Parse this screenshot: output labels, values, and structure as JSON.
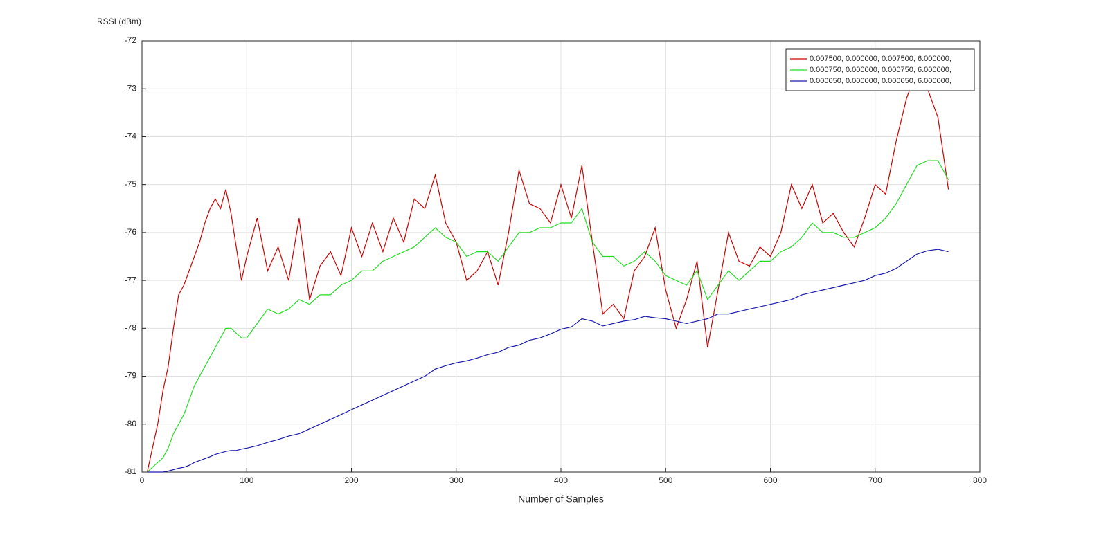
{
  "chart_data": {
    "type": "line",
    "y_label": "RSSI (dBm)",
    "x_label": "Number of Samples",
    "xlim": [
      0,
      800
    ],
    "xticks": [
      0,
      100,
      200,
      300,
      400,
      500,
      600,
      700,
      800
    ],
    "ylim": [
      -81,
      -72
    ],
    "yticks": [
      -81,
      -80,
      -79,
      -78,
      -77,
      -76,
      -75,
      -74,
      -73,
      -72
    ],
    "grid": true,
    "legend": "upper right",
    "x": [
      5,
      10,
      15,
      20,
      25,
      30,
      35,
      40,
      45,
      50,
      55,
      60,
      65,
      70,
      75,
      80,
      85,
      90,
      95,
      100,
      110,
      120,
      130,
      140,
      150,
      160,
      170,
      180,
      190,
      200,
      210,
      220,
      230,
      240,
      250,
      260,
      270,
      280,
      290,
      300,
      310,
      320,
      330,
      340,
      350,
      360,
      370,
      380,
      390,
      400,
      410,
      420,
      430,
      440,
      450,
      460,
      470,
      480,
      490,
      500,
      510,
      520,
      530,
      540,
      550,
      560,
      570,
      580,
      590,
      600,
      610,
      620,
      630,
      640,
      650,
      660,
      670,
      680,
      690,
      700,
      710,
      720,
      730,
      740,
      750,
      760,
      770
    ],
    "series": [
      {
        "name": "0.007500,  0.000000,  0.007500,  6.000000,",
        "color": "#cc0000",
        "values": [
          -81,
          -80.5,
          -80,
          -79.3,
          -78.8,
          -78,
          -77.3,
          -77.1,
          -76.8,
          -76.5,
          -76.2,
          -75.8,
          -75.5,
          -75.3,
          -75.5,
          -75.1,
          -75.6,
          -76.3,
          -77,
          -76.5,
          -75.7,
          -76.8,
          -76.3,
          -77,
          -75.7,
          -77.4,
          -76.7,
          -76.4,
          -76.9,
          -75.9,
          -76.5,
          -75.8,
          -76.4,
          -75.7,
          -76.2,
          -75.3,
          -75.5,
          -74.8,
          -75.8,
          -76.2,
          -77,
          -76.8,
          -76.4,
          -77.1,
          -76,
          -74.7,
          -75.4,
          -75.5,
          -75.8,
          -75,
          -75.7,
          -74.6,
          -76.2,
          -77.7,
          -77.5,
          -77.8,
          -76.8,
          -76.5,
          -75.9,
          -77.2,
          -78,
          -77.4,
          -76.6,
          -78.4,
          -77.2,
          -76,
          -76.6,
          -76.7,
          -76.3,
          -76.5,
          -76,
          -75,
          -75.5,
          -75,
          -75.8,
          -75.6,
          -76,
          -76.3,
          -75.7,
          -75,
          -75.2,
          -74.1,
          -73.2,
          -72.6,
          -73,
          -73.6,
          -75.1
        ]
      },
      {
        "name": "0.000750,  0.000000,  0.000750,  6.000000,",
        "color": "#22dd22",
        "values": [
          -81,
          -80.9,
          -80.8,
          -80.7,
          -80.5,
          -80.2,
          -80,
          -79.8,
          -79.5,
          -79.2,
          -79,
          -78.8,
          -78.6,
          -78.4,
          -78.2,
          -78,
          -78,
          -78.1,
          -78.2,
          -78.2,
          -77.9,
          -77.6,
          -77.7,
          -77.6,
          -77.4,
          -77.5,
          -77.3,
          -77.3,
          -77.1,
          -77,
          -76.8,
          -76.8,
          -76.6,
          -76.5,
          -76.4,
          -76.3,
          -76.1,
          -75.9,
          -76.1,
          -76.2,
          -76.5,
          -76.4,
          -76.4,
          -76.6,
          -76.3,
          -76,
          -76,
          -75.9,
          -75.9,
          -75.8,
          -75.8,
          -75.5,
          -76.2,
          -76.5,
          -76.5,
          -76.7,
          -76.6,
          -76.4,
          -76.6,
          -76.9,
          -77,
          -77.1,
          -76.8,
          -77.4,
          -77.1,
          -76.8,
          -77,
          -76.8,
          -76.6,
          -76.6,
          -76.4,
          -76.3,
          -76.1,
          -75.8,
          -76,
          -76,
          -76.1,
          -76.1,
          -76,
          -75.9,
          -75.7,
          -75.4,
          -75,
          -74.6,
          -74.5,
          -74.5,
          -74.9
        ]
      },
      {
        "name": "0.000050,  0.000000,  0.000050,  6.000000,",
        "color": "#1a1aaa",
        "values": [
          -81,
          -81,
          -81,
          -81,
          -80.98,
          -80.95,
          -80.92,
          -80.9,
          -80.86,
          -80.8,
          -80.76,
          -80.72,
          -80.68,
          -80.63,
          -80.6,
          -80.57,
          -80.55,
          -80.55,
          -80.52,
          -80.5,
          -80.45,
          -80.38,
          -80.32,
          -80.25,
          -80.2,
          -80.1,
          -80,
          -79.9,
          -79.8,
          -79.7,
          -79.6,
          -79.5,
          -79.4,
          -79.3,
          -79.2,
          -79.1,
          -79,
          -78.85,
          -78.78,
          -78.72,
          -78.68,
          -78.62,
          -78.55,
          -78.5,
          -78.4,
          -78.35,
          -78.25,
          -78.2,
          -78.12,
          -78.02,
          -77.97,
          -77.8,
          -77.85,
          -77.95,
          -77.9,
          -77.85,
          -77.82,
          -77.75,
          -77.78,
          -77.8,
          -77.85,
          -77.9,
          -77.85,
          -77.8,
          -77.7,
          -77.7,
          -77.65,
          -77.6,
          -77.55,
          -77.5,
          -77.45,
          -77.4,
          -77.3,
          -77.25,
          -77.2,
          -77.15,
          -77.1,
          -77.05,
          -77,
          -76.9,
          -76.85,
          -76.75,
          -76.6,
          -76.45,
          -76.38,
          -76.35,
          -76.4
        ]
      }
    ]
  }
}
